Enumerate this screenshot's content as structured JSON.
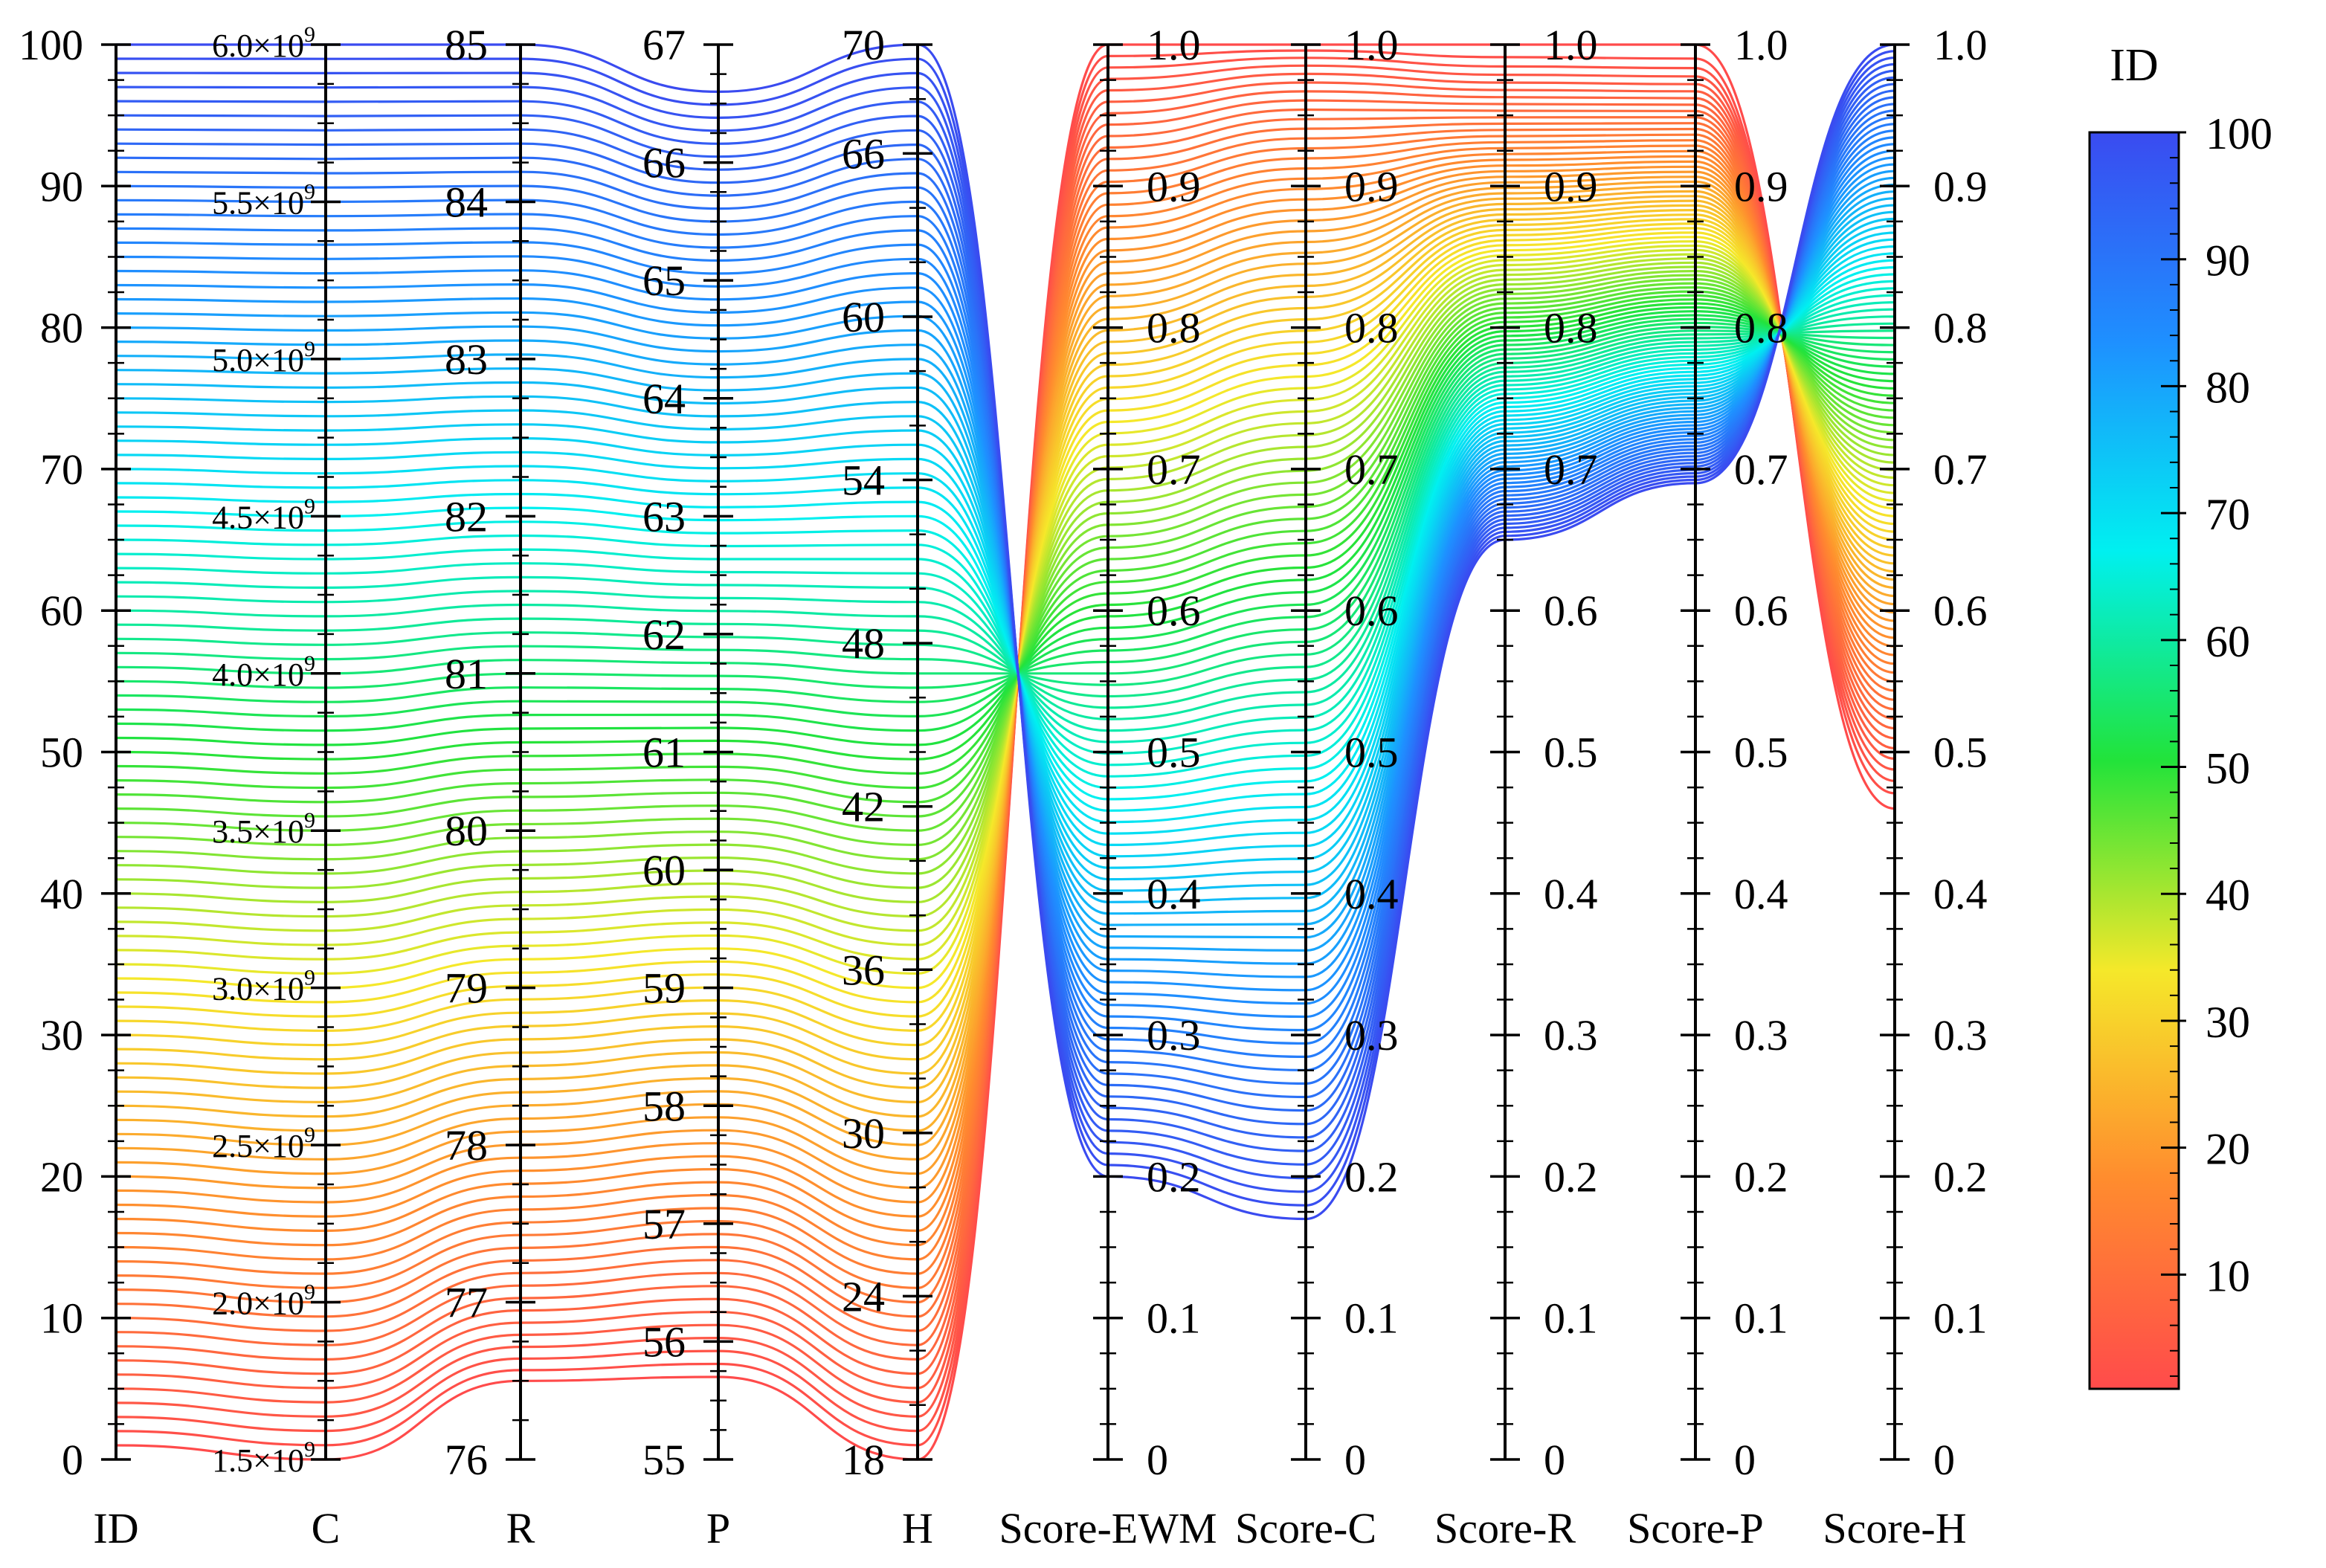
{
  "chart_data": {
    "type": "parallel_coordinates",
    "n_lines": 100,
    "id_range": [
      1,
      100
    ],
    "axes": [
      {
        "key": "ID",
        "name": "ID",
        "min": 0,
        "max": 100,
        "ticks": [
          "0",
          "10",
          "20",
          "30",
          "40",
          "50",
          "60",
          "70",
          "80",
          "90",
          "100"
        ],
        "tick_side": "left"
      },
      {
        "key": "C",
        "name": "C",
        "min": 1500000000,
        "max": 6000000000,
        "ticks": [
          "1.5×10",
          "2.0×10",
          "2.5×10",
          "3.0×10",
          "3.5×10",
          "4.0×10",
          "4.5×10",
          "5.0×10",
          "5.5×10",
          "6.0×10"
        ],
        "tick_exponent": "9",
        "tick_side": "left"
      },
      {
        "key": "R",
        "name": "R",
        "min": 76,
        "max": 85,
        "ticks": [
          "76",
          "77",
          "78",
          "79",
          "80",
          "81",
          "82",
          "83",
          "84",
          "85"
        ],
        "tick_side": "left"
      },
      {
        "key": "P",
        "name": "P",
        "min": 55,
        "max": 67,
        "ticks": [
          "55",
          "56",
          "57",
          "58",
          "59",
          "60",
          "61",
          "62",
          "63",
          "64",
          "65",
          "66",
          "67"
        ],
        "tick_side": "left"
      },
      {
        "key": "H",
        "name": "H",
        "min": 18,
        "max": 70,
        "ticks": [
          "18",
          "24",
          "30",
          "36",
          "42",
          "48",
          "54",
          "60",
          "66",
          "70"
        ],
        "tick_side": "left"
      },
      {
        "key": "SEWM",
        "name": "Score-EWM",
        "min": 0,
        "max": 1,
        "ticks": [
          "0",
          "0.1",
          "0.2",
          "0.3",
          "0.4",
          "0.5",
          "0.6",
          "0.7",
          "0.8",
          "0.9",
          "1.0"
        ],
        "tick_side": "right"
      },
      {
        "key": "SC",
        "name": "Score-C",
        "min": 0,
        "max": 1,
        "ticks": [
          "0",
          "0.1",
          "0.2",
          "0.3",
          "0.4",
          "0.5",
          "0.6",
          "0.7",
          "0.8",
          "0.9",
          "1.0"
        ],
        "tick_side": "right"
      },
      {
        "key": "SR",
        "name": "Score-R",
        "min": 0,
        "max": 1,
        "ticks": [
          "0",
          "0.1",
          "0.2",
          "0.3",
          "0.4",
          "0.5",
          "0.6",
          "0.7",
          "0.8",
          "0.9",
          "1.0"
        ],
        "tick_side": "right"
      },
      {
        "key": "SP",
        "name": "Score-P",
        "min": 0,
        "max": 1,
        "ticks": [
          "0",
          "0.1",
          "0.2",
          "0.3",
          "0.4",
          "0.5",
          "0.6",
          "0.7",
          "0.8",
          "0.9",
          "1.0"
        ],
        "tick_side": "right"
      },
      {
        "key": "SH",
        "name": "Score-H",
        "min": 0,
        "max": 1,
        "ticks": [
          "0",
          "0.1",
          "0.2",
          "0.3",
          "0.4",
          "0.5",
          "0.6",
          "0.7",
          "0.8",
          "0.9",
          "1.0"
        ],
        "tick_side": "right"
      }
    ],
    "line_endpoints": {
      "note": "Values of line ID=1 and ID=100 on each axis (data units); intermediate lines interpolate between them.",
      "ID": [
        1,
        100
      ],
      "C": [
        1500000000,
        6000000000
      ],
      "R": [
        76.5,
        85.0
      ],
      "P": [
        55.7,
        66.6
      ],
      "H": [
        18.0,
        70.0
      ],
      "SEWM": [
        1.0,
        0.2
      ],
      "SC": [
        1.0,
        0.17
      ],
      "SR": [
        1.0,
        0.65
      ],
      "SP": [
        1.0,
        0.69
      ],
      "SH": [
        0.46,
        1.0
      ]
    },
    "colorbar": {
      "title": "ID",
      "min": 1,
      "max": 100,
      "ticks": [
        "10",
        "20",
        "30",
        "40",
        "50",
        "60",
        "70",
        "80",
        "90",
        "100"
      ],
      "colors": [
        "#ff4b4b",
        "#ff8c2e",
        "#f5e82a",
        "#22e33a",
        "#00f0f0",
        "#1e90ff",
        "#3a4bf0"
      ]
    }
  }
}
